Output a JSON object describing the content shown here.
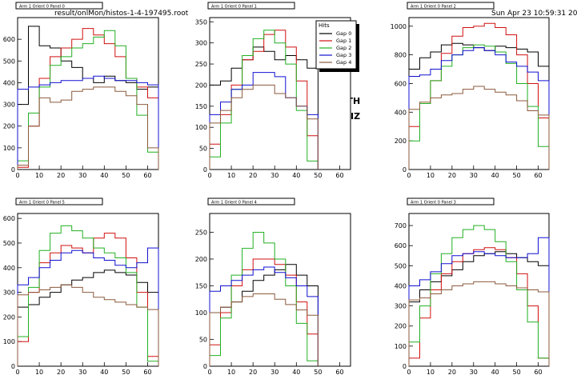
{
  "header": {
    "file": "result/onlMon/histos-1-4-197495.root",
    "date": "Sun Apr 23 10:59:31 2006"
  },
  "side_labels": {
    "top": "NORTH",
    "bottom": "HORIZ"
  },
  "legend": {
    "title": "Hits",
    "entries": [
      "Gap 0",
      "Gap 1",
      "Gap 2",
      "Gap 3",
      "Gap 4"
    ]
  },
  "colors": {
    "gap0": "#000000",
    "gap1": "#d01010",
    "gap2": "#22b022",
    "gap3": "#1010d0",
    "gap4": "#8b5a3c"
  },
  "chart_data": [
    {
      "type": "line",
      "title": "Arm 1 Orient 0 Panel 0",
      "xlim": [
        0,
        65
      ],
      "ylim": [
        0,
        700
      ],
      "xticks": [
        0,
        10,
        20,
        30,
        40,
        50,
        60
      ],
      "yticks": [
        0,
        100,
        200,
        300,
        400,
        500,
        600
      ],
      "x": [
        0,
        5,
        10,
        15,
        20,
        25,
        30,
        35,
        40,
        45,
        50,
        55,
        60
      ],
      "series": [
        {
          "name": "Gap 0",
          "values": [
            300,
            660,
            570,
            560,
            500,
            470,
            420,
            400,
            430,
            410,
            400,
            370,
            380
          ]
        },
        {
          "name": "Gap 1",
          "values": [
            10,
            200,
            420,
            520,
            560,
            600,
            650,
            620,
            580,
            520,
            420,
            380,
            330
          ]
        },
        {
          "name": "Gap 2",
          "values": [
            40,
            260,
            380,
            480,
            520,
            560,
            580,
            610,
            640,
            570,
            420,
            250,
            80
          ]
        },
        {
          "name": "Gap 3",
          "values": [
            370,
            380,
            390,
            400,
            410,
            410,
            420,
            430,
            420,
            410,
            410,
            400,
            390
          ]
        },
        {
          "name": "Gap 4",
          "values": [
            20,
            200,
            330,
            310,
            320,
            360,
            370,
            380,
            380,
            360,
            340,
            300,
            100
          ]
        }
      ]
    },
    {
      "type": "line",
      "title": "Arm 1 Orient 0 Panel 1",
      "xlim": [
        0,
        65
      ],
      "ylim": [
        0,
        360
      ],
      "xticks": [
        0,
        10,
        20,
        30,
        40,
        50,
        60
      ],
      "yticks": [
        0,
        50,
        100,
        150,
        200,
        250,
        300,
        350
      ],
      "x": [
        0,
        5,
        10,
        15,
        20,
        25,
        30,
        35,
        40,
        45
      ],
      "series": [
        {
          "name": "Gap 0",
          "values": [
            200,
            210,
            240,
            260,
            290,
            280,
            260,
            270,
            260,
            240
          ]
        },
        {
          "name": "Gap 1",
          "values": [
            60,
            130,
            200,
            260,
            280,
            320,
            330,
            290,
            210,
            80
          ]
        },
        {
          "name": "Gap 2",
          "values": [
            30,
            110,
            190,
            270,
            310,
            330,
            300,
            250,
            140,
            20
          ]
        },
        {
          "name": "Gap 3",
          "values": [
            130,
            160,
            190,
            200,
            230,
            230,
            220,
            170,
            150,
            130
          ]
        },
        {
          "name": "Gap 4",
          "values": [
            110,
            140,
            170,
            190,
            200,
            200,
            180,
            170,
            150,
            120
          ]
        }
      ]
    },
    {
      "type": "line",
      "title": "Arm 1 Orient 0 Panel 2",
      "xlim": [
        0,
        65
      ],
      "ylim": [
        0,
        1060
      ],
      "xticks": [
        0,
        10,
        20,
        30,
        40,
        50,
        60
      ],
      "yticks": [
        0,
        200,
        400,
        600,
        800,
        1000
      ],
      "x": [
        0,
        5,
        10,
        15,
        20,
        25,
        30,
        35,
        40,
        45,
        50,
        55,
        60
      ],
      "series": [
        {
          "name": "Gap 0",
          "values": [
            700,
            780,
            820,
            870,
            880,
            870,
            850,
            830,
            860,
            850,
            840,
            820,
            720
          ]
        },
        {
          "name": "Gap 1",
          "values": [
            300,
            460,
            620,
            810,
            930,
            990,
            1000,
            1020,
            990,
            940,
            800,
            600,
            360
          ]
        },
        {
          "name": "Gap 2",
          "values": [
            200,
            460,
            620,
            720,
            800,
            850,
            870,
            860,
            820,
            740,
            600,
            440,
            160
          ]
        },
        {
          "name": "Gap 3",
          "values": [
            650,
            660,
            700,
            760,
            800,
            830,
            850,
            830,
            800,
            750,
            720,
            680,
            620
          ]
        },
        {
          "name": "Gap 4",
          "values": [
            420,
            470,
            500,
            520,
            530,
            560,
            580,
            560,
            540,
            520,
            480,
            410,
            380
          ]
        }
      ]
    },
    {
      "type": "line",
      "title": "Arm 1 Orient 0 Panel 5",
      "xlim": [
        0,
        65
      ],
      "ylim": [
        0,
        620
      ],
      "xticks": [
        0,
        10,
        20,
        30,
        40,
        50,
        60
      ],
      "yticks": [
        0,
        100,
        200,
        300,
        400,
        500,
        600
      ],
      "x": [
        0,
        5,
        10,
        15,
        20,
        25,
        30,
        35,
        40,
        45,
        50,
        55,
        60
      ],
      "series": [
        {
          "name": "Gap 0",
          "values": [
            240,
            250,
            280,
            300,
            330,
            350,
            360,
            380,
            390,
            380,
            370,
            340,
            300
          ]
        },
        {
          "name": "Gap 1",
          "values": [
            100,
            300,
            420,
            460,
            490,
            480,
            460,
            520,
            540,
            520,
            440,
            300,
            40
          ]
        },
        {
          "name": "Gap 2",
          "values": [
            120,
            320,
            470,
            540,
            570,
            550,
            520,
            480,
            460,
            440,
            380,
            240,
            20
          ]
        },
        {
          "name": "Gap 3",
          "values": [
            330,
            360,
            400,
            430,
            460,
            470,
            460,
            440,
            430,
            410,
            400,
            420,
            480
          ]
        },
        {
          "name": "Gap 4",
          "values": [
            290,
            300,
            310,
            320,
            330,
            320,
            300,
            280,
            270,
            260,
            250,
            240,
            230
          ]
        }
      ]
    },
    {
      "type": "line",
      "title": "Arm 1 Orient 0 Panel 4",
      "xlim": [
        0,
        65
      ],
      "ylim": [
        0,
        285
      ],
      "xticks": [
        0,
        10,
        20,
        30,
        40,
        50,
        60
      ],
      "yticks": [
        0,
        50,
        100,
        150,
        200,
        250
      ],
      "x": [
        0,
        5,
        10,
        15,
        20,
        25,
        30,
        35,
        40,
        45
      ],
      "series": [
        {
          "name": "Gap 0",
          "values": [
            100,
            110,
            120,
            140,
            160,
            170,
            180,
            190,
            170,
            150
          ]
        },
        {
          "name": "Gap 1",
          "values": [
            40,
            100,
            150,
            180,
            200,
            200,
            190,
            170,
            120,
            60
          ]
        },
        {
          "name": "Gap 2",
          "values": [
            20,
            90,
            170,
            220,
            250,
            230,
            200,
            150,
            80,
            10
          ]
        },
        {
          "name": "Gap 3",
          "values": [
            140,
            150,
            160,
            170,
            180,
            185,
            175,
            165,
            150,
            130
          ]
        },
        {
          "name": "Gap 4",
          "values": [
            100,
            110,
            120,
            130,
            135,
            135,
            125,
            115,
            105,
            95
          ]
        }
      ]
    },
    {
      "type": "line",
      "title": "Arm 1 Orient 0 Panel 3",
      "xlim": [
        0,
        65
      ],
      "ylim": [
        0,
        760
      ],
      "xticks": [
        0,
        10,
        20,
        30,
        40,
        50,
        60
      ],
      "yticks": [
        0,
        100,
        200,
        300,
        400,
        500,
        600,
        700
      ],
      "x": [
        0,
        5,
        10,
        15,
        20,
        25,
        30,
        35,
        40,
        45,
        50,
        55,
        60
      ],
      "series": [
        {
          "name": "Gap 0",
          "values": [
            320,
            380,
            420,
            450,
            480,
            520,
            550,
            560,
            570,
            560,
            540,
            520,
            500
          ]
        },
        {
          "name": "Gap 1",
          "values": [
            40,
            240,
            380,
            460,
            520,
            560,
            580,
            590,
            580,
            540,
            460,
            300,
            40
          ]
        },
        {
          "name": "Gap 2",
          "values": [
            120,
            300,
            460,
            560,
            640,
            680,
            700,
            680,
            620,
            520,
            380,
            220,
            40
          ]
        },
        {
          "name": "Gap 3",
          "values": [
            400,
            430,
            470,
            510,
            550,
            560,
            570,
            560,
            550,
            540,
            540,
            560,
            640
          ]
        },
        {
          "name": "Gap 4",
          "values": [
            330,
            340,
            360,
            380,
            400,
            410,
            420,
            420,
            410,
            400,
            390,
            380,
            370
          ]
        }
      ]
    }
  ]
}
